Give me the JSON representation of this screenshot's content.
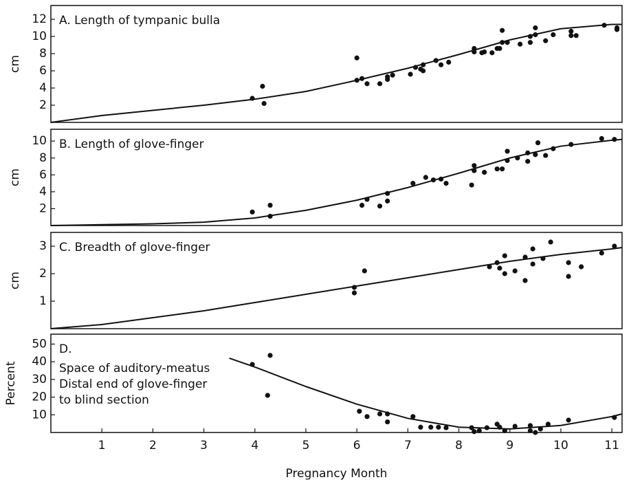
{
  "chart_data": [
    {
      "type": "scatter",
      "title": "A. Length of tympanic bulla",
      "y_label": "cm",
      "xlim": [
        0,
        11.2
      ],
      "ylim": [
        0,
        13.6
      ],
      "yticks": [
        2,
        4,
        6,
        8,
        10,
        12
      ],
      "series": [
        {
          "type": "scatter",
          "color": "#111111",
          "x": [
            3.95,
            4.15,
            4.18,
            6.0,
            6.0,
            6.1,
            6.2,
            6.45,
            6.6,
            6.6,
            6.7,
            7.05,
            7.15,
            7.25,
            7.3,
            7.3,
            7.55,
            7.65,
            7.8,
            8.3,
            8.3,
            8.45,
            8.5,
            8.65,
            8.75,
            8.8,
            8.85,
            8.85,
            8.95,
            9.2,
            9.4,
            9.4,
            9.5,
            9.5,
            9.7,
            9.85,
            10.2,
            10.2,
            10.3,
            10.85,
            11.1,
            11.1
          ],
          "values": [
            2.8,
            4.2,
            2.2,
            7.5,
            4.9,
            5.1,
            4.5,
            4.5,
            5.3,
            5.0,
            5.5,
            5.6,
            6.4,
            6.2,
            6.7,
            6.0,
            7.2,
            6.7,
            7.0,
            8.6,
            8.2,
            8.1,
            8.2,
            8.1,
            8.6,
            8.6,
            10.7,
            9.3,
            9.3,
            9.1,
            10.0,
            9.3,
            11.0,
            10.2,
            9.5,
            10.2,
            10.6,
            10.1,
            10.1,
            11.3,
            10.8,
            11.0
          ]
        },
        {
          "type": "line",
          "color": "#111111",
          "x": [
            0,
            1,
            2,
            3,
            4,
            5,
            6,
            7,
            8,
            9,
            10,
            11,
            11.2
          ],
          "values": [
            0,
            0.8,
            1.4,
            2.0,
            2.7,
            3.6,
            4.9,
            6.3,
            7.9,
            9.6,
            10.9,
            11.4,
            11.4
          ]
        }
      ]
    },
    {
      "type": "scatter",
      "title": "B. Length of glove-finger",
      "y_label": "cm",
      "xlim": [
        0,
        11.2
      ],
      "ylim": [
        0,
        11.4
      ],
      "yticks": [
        2,
        4,
        6,
        8,
        10
      ],
      "series": [
        {
          "type": "scatter",
          "color": "#111111",
          "x": [
            3.95,
            4.3,
            4.3,
            6.1,
            6.2,
            6.45,
            6.6,
            6.6,
            7.1,
            7.35,
            7.5,
            7.65,
            7.75,
            8.25,
            8.3,
            8.3,
            8.5,
            8.75,
            8.85,
            8.95,
            8.95,
            9.15,
            9.35,
            9.35,
            9.5,
            9.55,
            9.7,
            9.85,
            10.2,
            10.8,
            11.05
          ],
          "values": [
            1.6,
            2.4,
            1.1,
            2.4,
            3.1,
            2.3,
            2.9,
            3.8,
            5.0,
            5.7,
            5.4,
            5.5,
            5.0,
            4.8,
            7.1,
            6.5,
            6.3,
            6.7,
            6.7,
            8.8,
            7.7,
            8.0,
            8.6,
            7.6,
            8.4,
            9.8,
            8.3,
            9.1,
            9.6,
            10.3,
            10.2
          ]
        },
        {
          "type": "line",
          "color": "#111111",
          "x": [
            0,
            1,
            2,
            3,
            4,
            5,
            6,
            7,
            8,
            9,
            10,
            11,
            11.2
          ],
          "values": [
            0,
            0.1,
            0.2,
            0.4,
            0.9,
            1.8,
            3.0,
            4.5,
            6.2,
            8.0,
            9.4,
            10.1,
            10.2
          ]
        }
      ]
    },
    {
      "type": "scatter",
      "title": "C. Breadth of glove-finger",
      "y_label": "cm",
      "xlim": [
        0,
        11.2
      ],
      "ylim": [
        0,
        3.5
      ],
      "yticks": [
        1,
        2,
        3
      ],
      "series": [
        {
          "type": "scatter",
          "color": "#111111",
          "x": [
            5.95,
            5.95,
            6.15,
            8.6,
            8.75,
            8.8,
            8.9,
            8.9,
            9.1,
            9.3,
            9.3,
            9.45,
            9.45,
            9.65,
            9.8,
            10.15,
            10.15,
            10.4,
            10.8,
            11.05
          ],
          "values": [
            1.5,
            1.3,
            2.1,
            2.25,
            2.4,
            2.2,
            2.65,
            2.0,
            2.1,
            2.6,
            1.75,
            2.9,
            2.35,
            2.55,
            3.15,
            2.4,
            1.9,
            2.25,
            2.75,
            3.0
          ]
        },
        {
          "type": "line",
          "color": "#111111",
          "x": [
            0,
            1,
            2,
            3,
            4,
            5,
            6,
            7,
            8,
            9,
            10,
            11,
            11.2
          ],
          "values": [
            0,
            0.15,
            0.4,
            0.65,
            0.95,
            1.25,
            1.55,
            1.85,
            2.15,
            2.45,
            2.7,
            2.9,
            2.95
          ]
        }
      ]
    },
    {
      "type": "scatter",
      "title": "D.",
      "annotation": [
        "Space of auditory-meatus",
        "Distal end of glove-finger",
        "to blind section"
      ],
      "y_label": "Percent",
      "x_label": "Pregnancy Month",
      "xlim": [
        0,
        11.2
      ],
      "ylim": [
        0,
        55.6
      ],
      "yticks": [
        10,
        20,
        30,
        40,
        50
      ],
      "xticks": [
        1,
        2,
        3,
        4,
        5,
        6,
        7,
        8,
        9,
        10,
        11
      ],
      "series": [
        {
          "type": "scatter",
          "color": "#111111",
          "x": [
            3.95,
            4.3,
            4.25,
            6.05,
            6.2,
            6.45,
            6.6,
            6.6,
            7.1,
            7.25,
            7.45,
            7.6,
            7.75,
            8.25,
            8.3,
            8.4,
            8.55,
            8.75,
            8.8,
            8.9,
            9.1,
            9.4,
            9.4,
            9.5,
            9.6,
            9.75,
            10.15,
            11.05
          ],
          "values": [
            38.5,
            43.6,
            21,
            12,
            9,
            10.5,
            10.5,
            6,
            9,
            3,
            3,
            3,
            2.7,
            2.7,
            0.5,
            1,
            2.7,
            4.7,
            3,
            1,
            3.5,
            3.9,
            1,
            0,
            2,
            4.7,
            7,
            8.5
          ]
        },
        {
          "type": "line",
          "color": "#111111",
          "x": [
            3.5,
            4,
            5,
            6,
            7,
            8,
            9,
            10,
            11,
            11.2
          ],
          "values": [
            42,
            37,
            26,
            16,
            8,
            3,
            2,
            4,
            9,
            10.5
          ]
        }
      ]
    }
  ]
}
